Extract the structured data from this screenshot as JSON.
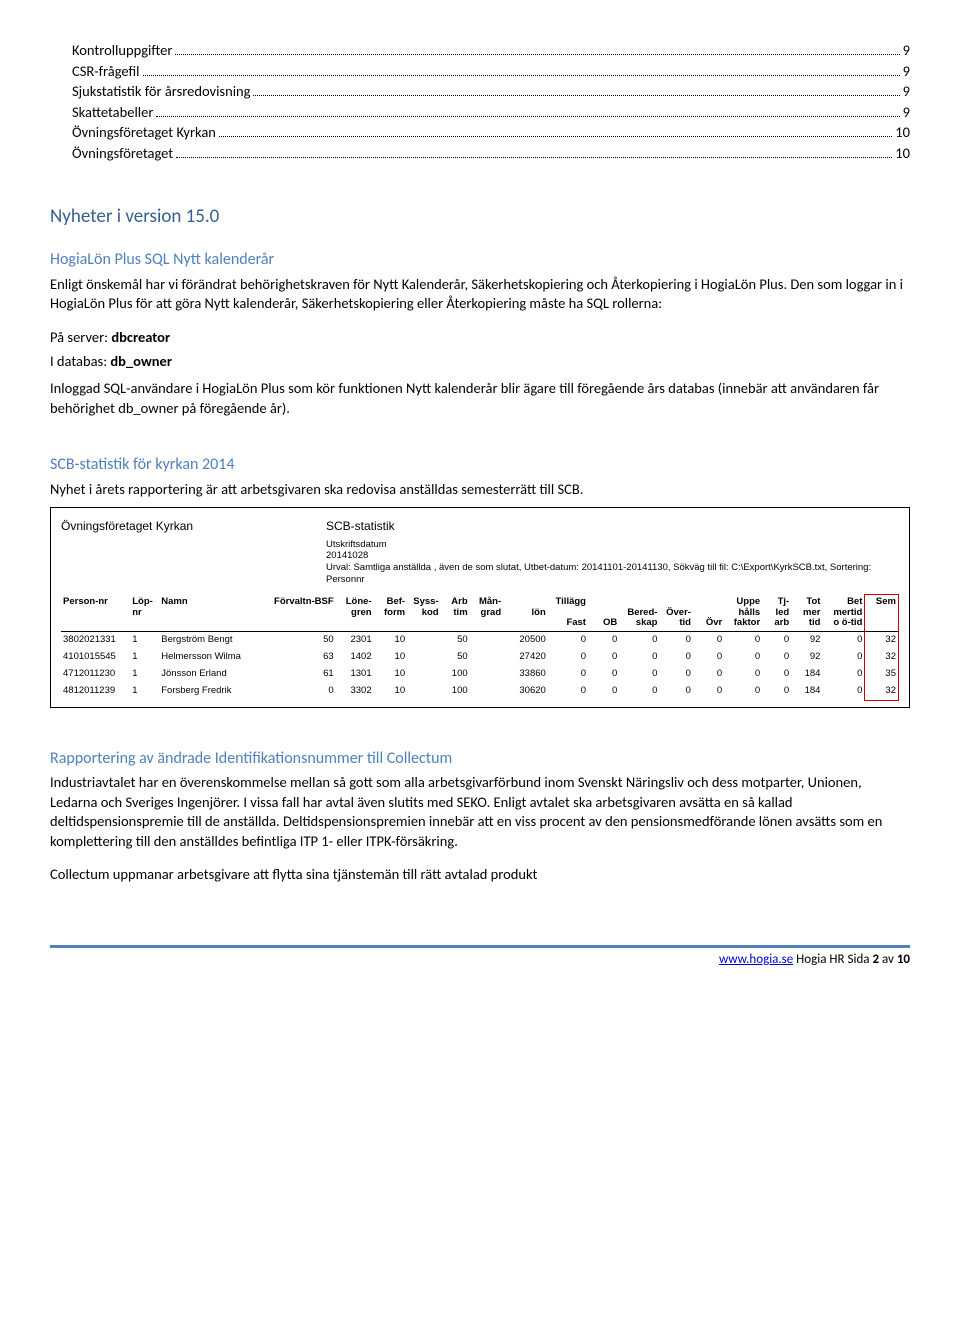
{
  "toc": [
    {
      "label": "Kontrolluppgifter",
      "page": "9",
      "indent": true
    },
    {
      "label": "CSR-frågefil",
      "page": "9",
      "indent": true
    },
    {
      "label": "Sjukstatistik för årsredovisning",
      "page": "9",
      "indent": true
    },
    {
      "label": "Skattetabeller",
      "page": "9",
      "indent": true
    },
    {
      "label": "Övningsföretaget Kyrkan",
      "page": "10",
      "indent": true
    },
    {
      "label": "Övningsföretaget",
      "page": "10",
      "indent": true
    }
  ],
  "h_nyheter": "Nyheter i version 15.0",
  "sec1": {
    "title": "HogiaLön Plus SQL Nytt kalenderår",
    "p1": "Enligt önskemål har vi förändrat behörighetskraven för Nytt Kalenderår, Säkerhetskopiering och Återkopiering i HogiaLön Plus. Den som loggar in i HogiaLön Plus för att göra Nytt kalenderår, Säkerhetskopiering eller Återkopiering måste ha SQL rollerna:",
    "r1a": "På server: ",
    "r1b": "dbcreator",
    "r2a": "I databas: ",
    "r2b": "db_owner",
    "p2": "Inloggad SQL-användare i HogiaLön Plus som kör funktionen Nytt kalenderår blir ägare till föregående års databas (innebär att användaren får behörighet db_owner på föregående år)."
  },
  "sec2": {
    "title": "SCB-statistik för kyrkan 2014",
    "p1": "Nyhet i årets rapportering är att arbetsgivaren ska redovisa anställdas semesterrätt till SCB."
  },
  "screenshot": {
    "company": "Övningsföretaget Kyrkan",
    "title": "SCB-statistik",
    "meta_label1": "Utskriftsdatum",
    "meta_date": "20141028",
    "meta_urval": "Urval: Samtliga anställda , även de som slutat, Utbet-datum: 20141101-20141130, Sökväg till fil: C:\\Export\\KyrkSCB.txt,  Sortering:  Personnr",
    "cols": [
      "Person-nr",
      "Löp-\nnr",
      "Namn",
      "Förvaltn-BSF",
      "Löne-\ngren",
      "Bef-\nform",
      "Syss-\nkod",
      "Arb\ntim",
      "Mån-\ngrad",
      "\nlön",
      "Tillägg\n\nFast",
      "\n\nOB",
      "\nBered-\nskap",
      "\nÖver-\ntid",
      "\n\nÖvr",
      "Uppe\nhålls\nfaktor",
      "Tj-\nled\narb",
      "Tot\nmer\ntid",
      "Bet\nmertid\no ö-tid",
      "Sem"
    ],
    "rows": [
      [
        "3802021331",
        "1",
        "Bergström Bengt",
        "50",
        "2301",
        "10",
        "",
        "50",
        "",
        "20500",
        "0",
        "0",
        "0",
        "0",
        "0",
        "0",
        "0",
        "92",
        "0",
        "32"
      ],
      [
        "4101015545",
        "1",
        "Helmersson Wilma",
        "63",
        "1402",
        "10",
        "",
        "50",
        "",
        "27420",
        "0",
        "0",
        "0",
        "0",
        "0",
        "0",
        "0",
        "92",
        "0",
        "32"
      ],
      [
        "4712011230",
        "1",
        "Jönsson Erland",
        "61",
        "1301",
        "10",
        "",
        "100",
        "",
        "33860",
        "0",
        "0",
        "0",
        "0",
        "0",
        "0",
        "0",
        "184",
        "0",
        "35"
      ],
      [
        "4812011239",
        "1",
        "Forsberg Fredrik",
        "0",
        "3302",
        "10",
        "",
        "100",
        "",
        "30620",
        "0",
        "0",
        "0",
        "0",
        "0",
        "0",
        "0",
        "184",
        "0",
        "32"
      ]
    ]
  },
  "sec3": {
    "title": "Rapportering av ändrade Identifikationsnummer till Collectum",
    "p1": "Industriavtalet har en överenskommelse mellan så gott som alla arbetsgivarförbund inom Svenskt Näringsliv och dess motparter, Unionen, Ledarna och Sveriges Ingenjörer. I vissa fall har avtal även slutits med SEKO. Enligt avtalet ska arbetsgivaren avsätta en så kallad deltidspensionspremie till de anställda. Deltidspensionspremien innebär att en viss procent av den pensionsmedförande lönen avsätts som en komplettering till den anställdes befintliga ITP 1- eller ITPK-försäkring.",
    "p2": "Collectum uppmanar arbetsgivare att flytta sina tjänstemän till rätt avtalad produkt"
  },
  "footer": {
    "link": "www.hogia.se",
    "rest": " Hogia HR Sida ",
    "page": "2",
    "of": " av ",
    "total": "10"
  }
}
